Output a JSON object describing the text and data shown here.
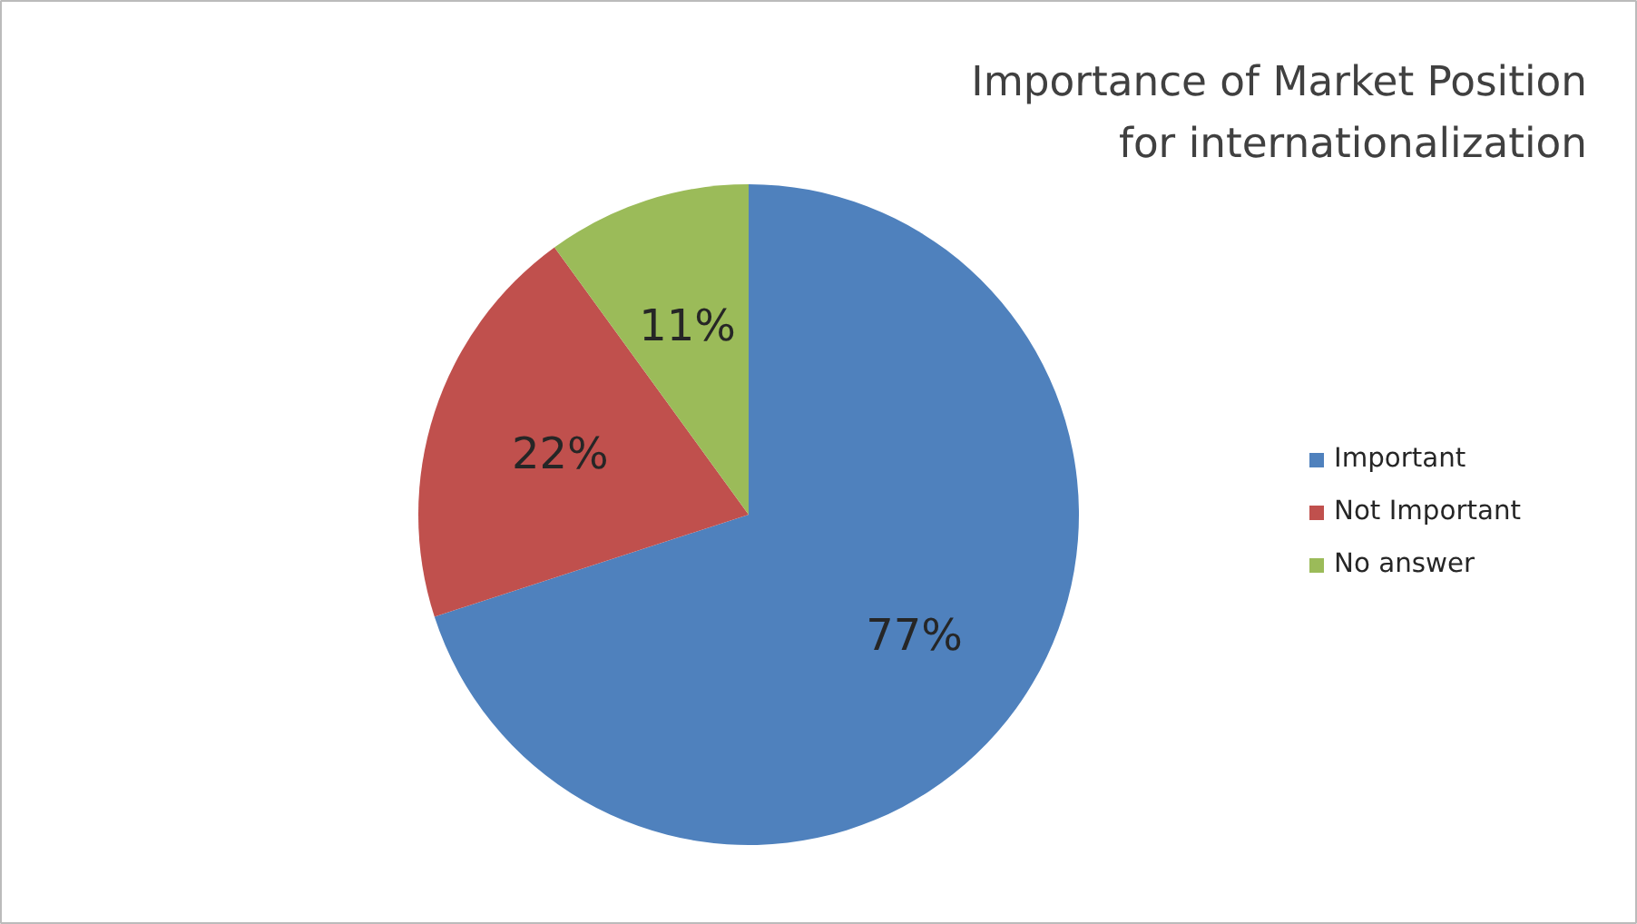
{
  "chart_data": {
    "type": "pie",
    "title": "Importance of Market Position for internationalization",
    "categories": [
      "Important",
      "Not Important",
      "No answer"
    ],
    "values": [
      77,
      22,
      11
    ],
    "colors": [
      "#4f81bd",
      "#c0504d",
      "#9bbb59"
    ],
    "value_labels": [
      "77%",
      "22%",
      "11%"
    ],
    "legend": "right"
  }
}
